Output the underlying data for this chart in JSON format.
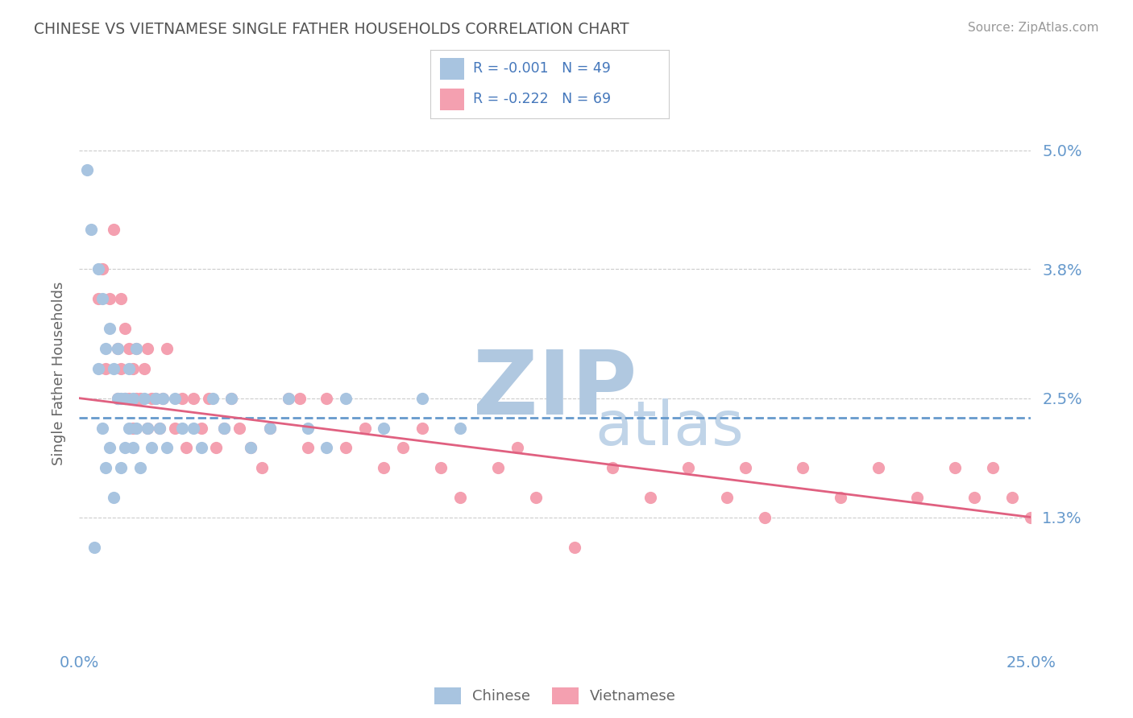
{
  "title": "CHINESE VS VIETNAMESE SINGLE FATHER HOUSEHOLDS CORRELATION CHART",
  "source": "Source: ZipAtlas.com",
  "ylabel": "Single Father Households",
  "xlim": [
    0.0,
    0.25
  ],
  "ylim": [
    0.0,
    0.055
  ],
  "yticks": [
    0.013,
    0.025,
    0.038,
    0.05
  ],
  "ytick_labels": [
    "1.3%",
    "2.5%",
    "3.8%",
    "5.0%"
  ],
  "xticks": [
    0.0,
    0.25
  ],
  "xtick_labels": [
    "0.0%",
    "25.0%"
  ],
  "chinese_R": -0.001,
  "chinese_N": 49,
  "vietnamese_R": -0.222,
  "vietnamese_N": 69,
  "chinese_color": "#a8c4e0",
  "vietnamese_color": "#f4a0b0",
  "chinese_line_color": "#6699cc",
  "vietnamese_line_color": "#e06080",
  "title_color": "#555555",
  "axis_label_color": "#666666",
  "tick_color": "#6699cc",
  "grid_color": "#cccccc",
  "source_color": "#999999",
  "watermark_zip_color": "#b0c8e0",
  "watermark_atlas_color": "#c0d4e8",
  "legend_r_color": "#4477bb",
  "background_color": "#ffffff",
  "chinese_line_y0": 0.023,
  "chinese_line_y1": 0.023,
  "vietnamese_line_y0": 0.025,
  "vietnamese_line_y1": 0.013,
  "chinese_x": [
    0.002,
    0.003,
    0.004,
    0.005,
    0.005,
    0.006,
    0.006,
    0.007,
    0.007,
    0.008,
    0.008,
    0.009,
    0.009,
    0.01,
    0.01,
    0.011,
    0.011,
    0.012,
    0.012,
    0.013,
    0.013,
    0.014,
    0.014,
    0.015,
    0.015,
    0.016,
    0.017,
    0.018,
    0.019,
    0.02,
    0.021,
    0.022,
    0.023,
    0.025,
    0.027,
    0.03,
    0.032,
    0.035,
    0.038,
    0.04,
    0.045,
    0.05,
    0.055,
    0.06,
    0.065,
    0.07,
    0.08,
    0.09,
    0.1
  ],
  "chinese_y": [
    0.048,
    0.042,
    0.01,
    0.038,
    0.028,
    0.035,
    0.022,
    0.03,
    0.018,
    0.032,
    0.02,
    0.028,
    0.015,
    0.025,
    0.03,
    0.025,
    0.018,
    0.025,
    0.02,
    0.022,
    0.028,
    0.02,
    0.025,
    0.022,
    0.03,
    0.018,
    0.025,
    0.022,
    0.02,
    0.025,
    0.022,
    0.025,
    0.02,
    0.025,
    0.022,
    0.022,
    0.02,
    0.025,
    0.022,
    0.025,
    0.02,
    0.022,
    0.025,
    0.022,
    0.02,
    0.025,
    0.022,
    0.025,
    0.022
  ],
  "vietnamese_x": [
    0.005,
    0.006,
    0.007,
    0.008,
    0.009,
    0.01,
    0.01,
    0.011,
    0.011,
    0.012,
    0.012,
    0.013,
    0.013,
    0.014,
    0.014,
    0.015,
    0.015,
    0.016,
    0.017,
    0.018,
    0.018,
    0.019,
    0.02,
    0.021,
    0.022,
    0.023,
    0.025,
    0.027,
    0.028,
    0.03,
    0.032,
    0.034,
    0.036,
    0.038,
    0.04,
    0.042,
    0.045,
    0.048,
    0.05,
    0.055,
    0.058,
    0.06,
    0.065,
    0.07,
    0.075,
    0.08,
    0.085,
    0.09,
    0.095,
    0.1,
    0.11,
    0.115,
    0.12,
    0.13,
    0.14,
    0.15,
    0.16,
    0.17,
    0.175,
    0.18,
    0.19,
    0.2,
    0.21,
    0.22,
    0.23,
    0.235,
    0.24,
    0.245,
    0.25
  ],
  "vietnamese_y": [
    0.035,
    0.038,
    0.028,
    0.035,
    0.042,
    0.025,
    0.03,
    0.028,
    0.035,
    0.025,
    0.032,
    0.03,
    0.025,
    0.028,
    0.022,
    0.025,
    0.03,
    0.025,
    0.028,
    0.022,
    0.03,
    0.025,
    0.025,
    0.022,
    0.025,
    0.03,
    0.022,
    0.025,
    0.02,
    0.025,
    0.022,
    0.025,
    0.02,
    0.022,
    0.025,
    0.022,
    0.02,
    0.018,
    0.022,
    0.025,
    0.025,
    0.02,
    0.025,
    0.02,
    0.022,
    0.018,
    0.02,
    0.022,
    0.018,
    0.015,
    0.018,
    0.02,
    0.015,
    0.01,
    0.018,
    0.015,
    0.018,
    0.015,
    0.018,
    0.013,
    0.018,
    0.015,
    0.018,
    0.015,
    0.018,
    0.015,
    0.018,
    0.015,
    0.013
  ]
}
